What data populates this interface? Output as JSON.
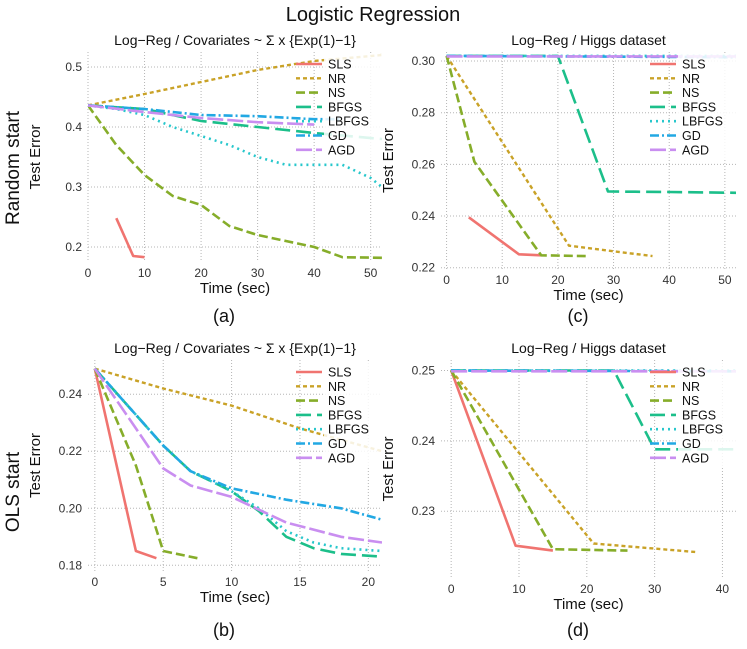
{
  "figure": {
    "title": "Logistic Regression",
    "row_labels": [
      "Random start",
      "OLS start"
    ],
    "panel_tags": [
      "(a)",
      "(c)",
      "(b)",
      "(d)"
    ]
  },
  "colors": {
    "SLS": "#f07470",
    "NR": "#c9a227",
    "NS": "#86ad2a",
    "BFGS": "#1cbf8a",
    "LBFGS": "#28c7cc",
    "GD": "#22a8e3",
    "AGD": "#c98ef0",
    "grid": "#b5b5b5"
  },
  "chart_data": [
    {
      "type": "line",
      "title": "Log−Reg / Covariates ~ Σ x {Exp(1)−1}",
      "xlabel": "Time (sec)",
      "ylabel": "Test Error",
      "xlim": [
        0,
        52
      ],
      "ylim": [
        0.175,
        0.525
      ],
      "xticks": [
        0,
        10,
        20,
        30,
        40,
        50
      ],
      "yticks": [
        0.2,
        0.3,
        0.4,
        0.5
      ],
      "ytick_labels": [
        "0.2",
        "0.3",
        "0.4",
        "0.5"
      ],
      "legend": [
        "SLS",
        "NR",
        "NS",
        "BFGS",
        "LBFGS",
        "GD",
        "AGD"
      ],
      "series": [
        {
          "name": "SLS",
          "x": [
            5,
            8,
            10
          ],
          "y": [
            0.248,
            0.185,
            0.183
          ]
        },
        {
          "name": "NR",
          "x": [
            0,
            10,
            20,
            30,
            40,
            52
          ],
          "y": [
            0.436,
            0.455,
            0.475,
            0.495,
            0.51,
            0.52
          ]
        },
        {
          "name": "NS",
          "x": [
            0,
            5,
            10,
            15,
            20,
            25,
            30,
            35,
            40,
            45,
            52
          ],
          "y": [
            0.436,
            0.37,
            0.32,
            0.285,
            0.27,
            0.235,
            0.22,
            0.21,
            0.2,
            0.183,
            0.182
          ]
        },
        {
          "name": "BFGS",
          "x": [
            0,
            10,
            20,
            30,
            40,
            52
          ],
          "y": [
            0.436,
            0.43,
            0.41,
            0.4,
            0.39,
            0.38
          ]
        },
        {
          "name": "LBFGS",
          "x": [
            0,
            5,
            10,
            15,
            20,
            25,
            30,
            35,
            40,
            45,
            50,
            52
          ],
          "y": [
            0.436,
            0.43,
            0.42,
            0.4,
            0.385,
            0.37,
            0.35,
            0.337,
            0.337,
            0.337,
            0.315,
            0.3
          ]
        },
        {
          "name": "GD",
          "x": [
            0,
            10,
            20,
            30,
            40,
            45
          ],
          "y": [
            0.436,
            0.43,
            0.42,
            0.418,
            0.413,
            0.413
          ]
        },
        {
          "name": "AGD",
          "x": [
            0,
            10,
            20,
            30,
            40
          ],
          "y": [
            0.436,
            0.425,
            0.415,
            0.408,
            0.404
          ]
        }
      ]
    },
    {
      "type": "line",
      "title": "Log−Reg / Higgs dataset",
      "xlabel": "Time (sec)",
      "ylabel": "Test Error",
      "xlim": [
        -1,
        52
      ],
      "ylim": [
        0.2195,
        0.3035
      ],
      "xticks": [
        0,
        10,
        20,
        30,
        40,
        50
      ],
      "yticks": [
        0.22,
        0.24,
        0.26,
        0.28,
        0.3
      ],
      "ytick_labels": [
        "0.22",
        "0.24",
        "0.26",
        "0.28",
        "0.30"
      ],
      "legend": [
        "SLS",
        "NR",
        "NS",
        "BFGS",
        "LBFGS",
        "GD",
        "AGD"
      ],
      "series": [
        {
          "name": "SLS",
          "x": [
            4,
            13,
            17
          ],
          "y": [
            0.2395,
            0.2252,
            0.2248
          ]
        },
        {
          "name": "NR",
          "x": [
            0,
            22,
            37
          ],
          "y": [
            0.302,
            0.2285,
            0.2245
          ]
        },
        {
          "name": "NS",
          "x": [
            0,
            5,
            17,
            25
          ],
          "y": [
            0.302,
            0.261,
            0.2248,
            0.2245
          ]
        },
        {
          "name": "BFGS",
          "x": [
            0,
            20,
            29,
            40,
            52
          ],
          "y": [
            0.302,
            0.302,
            0.2495,
            0.2493,
            0.249
          ]
        },
        {
          "name": "LBFGS",
          "x": [
            0,
            52
          ],
          "y": [
            0.302,
            0.302
          ]
        },
        {
          "name": "GD",
          "x": [
            0,
            52
          ],
          "y": [
            0.302,
            0.3015
          ]
        },
        {
          "name": "AGD",
          "x": [
            0,
            52
          ],
          "y": [
            0.3018,
            0.3018
          ]
        }
      ]
    },
    {
      "type": "line",
      "title": "Log−Reg / Covariates ~ Σ x {Exp(1)−1}",
      "xlabel": "Time (sec)",
      "ylabel": "Test Error",
      "xlim": [
        -0.5,
        21
      ],
      "ylim": [
        0.178,
        0.252
      ],
      "xticks": [
        0,
        5,
        10,
        15,
        20
      ],
      "yticks": [
        0.18,
        0.2,
        0.22,
        0.24
      ],
      "ytick_labels": [
        "0.18",
        "0.20",
        "0.22",
        "0.24"
      ],
      "legend": [
        "SLS",
        "NR",
        "NS",
        "BFGS",
        "LBFGS",
        "GD",
        "AGD"
      ],
      "series": [
        {
          "name": "SLS",
          "x": [
            0,
            3,
            4.5
          ],
          "y": [
            0.249,
            0.185,
            0.1825
          ]
        },
        {
          "name": "NR",
          "x": [
            0,
            5,
            10,
            15,
            21
          ],
          "y": [
            0.249,
            0.242,
            0.236,
            0.228,
            0.22
          ]
        },
        {
          "name": "NS",
          "x": [
            0,
            3,
            5,
            7.5
          ],
          "y": [
            0.249,
            0.215,
            0.185,
            0.1825
          ]
        },
        {
          "name": "BFGS",
          "x": [
            0,
            5,
            7,
            10,
            12,
            14,
            16,
            18,
            21
          ],
          "y": [
            0.249,
            0.222,
            0.213,
            0.206,
            0.199,
            0.19,
            0.186,
            0.184,
            0.183
          ]
        },
        {
          "name": "LBFGS",
          "x": [
            0,
            5,
            7,
            10,
            12,
            14,
            16,
            18,
            21
          ],
          "y": [
            0.249,
            0.222,
            0.213,
            0.206,
            0.2,
            0.192,
            0.188,
            0.186,
            0.185
          ]
        },
        {
          "name": "GD",
          "x": [
            0,
            5,
            7,
            10,
            14,
            18,
            21
          ],
          "y": [
            0.249,
            0.222,
            0.213,
            0.207,
            0.203,
            0.2,
            0.196
          ]
        },
        {
          "name": "AGD",
          "x": [
            0,
            3,
            5,
            7,
            10,
            14,
            18,
            21
          ],
          "y": [
            0.249,
            0.228,
            0.214,
            0.208,
            0.204,
            0.195,
            0.19,
            0.188
          ]
        }
      ]
    },
    {
      "type": "line",
      "title": "Log−Reg / Higgs dataset",
      "xlabel": "Time (sec)",
      "ylabel": "Test Error",
      "xlim": [
        -1.5,
        42
      ],
      "ylim": [
        0.2205,
        0.2515
      ],
      "xticks": [
        0,
        10,
        20,
        30,
        40
      ],
      "yticks": [
        0.23,
        0.24,
        0.25
      ],
      "ytick_labels": [
        "0.23",
        "0.24",
        "0.25"
      ],
      "legend": [
        "SLS",
        "NR",
        "NS",
        "BFGS",
        "LBFGS",
        "GD",
        "AGD"
      ],
      "series": [
        {
          "name": "SLS",
          "x": [
            0,
            9.5,
            15
          ],
          "y": [
            0.25,
            0.2251,
            0.2244
          ]
        },
        {
          "name": "NR",
          "x": [
            0,
            21,
            36
          ],
          "y": [
            0.25,
            0.2254,
            0.2242
          ]
        },
        {
          "name": "NS",
          "x": [
            0,
            15,
            26
          ],
          "y": [
            0.25,
            0.2246,
            0.2244
          ]
        },
        {
          "name": "BFGS",
          "x": [
            0,
            24,
            30,
            42
          ],
          "y": [
            0.25,
            0.25,
            0.2388,
            0.2388
          ]
        },
        {
          "name": "LBFGS",
          "x": [
            0,
            42
          ],
          "y": [
            0.25,
            0.25
          ]
        },
        {
          "name": "GD",
          "x": [
            0,
            42
          ],
          "y": [
            0.25,
            0.2499
          ]
        },
        {
          "name": "AGD",
          "x": [
            0,
            42
          ],
          "y": [
            0.2499,
            0.2499
          ]
        }
      ]
    }
  ]
}
